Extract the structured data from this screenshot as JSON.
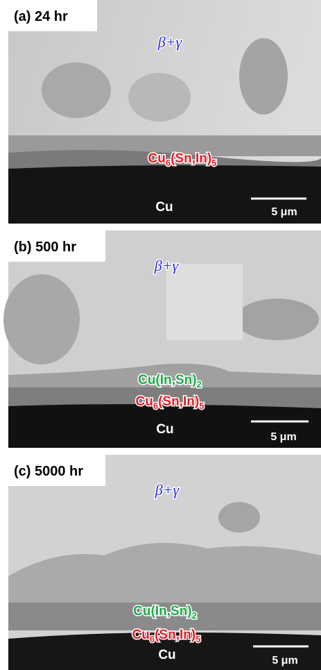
{
  "panels": [
    {
      "label": "(a) 24 hr",
      "phases": [
        {
          "parts": [
            "β+γ"
          ]
        },
        {
          "parts": [
            "Cu",
            "6",
            "(Sn,In)",
            "5"
          ]
        }
      ],
      "substrate": "Cu",
      "scale_bar": "5 μm"
    },
    {
      "label": "(b) 500 hr",
      "phases": [
        {
          "parts": [
            "β+γ"
          ]
        },
        {
          "parts": [
            "Cu(In,Sn)",
            "2"
          ]
        },
        {
          "parts": [
            "Cu",
            "6",
            "(Sn,In)",
            "5"
          ]
        }
      ],
      "substrate": "Cu",
      "scale_bar": "5 μm"
    },
    {
      "label": "(c) 5000 hr",
      "phases": [
        {
          "parts": [
            "β+γ"
          ]
        },
        {
          "parts": [
            "Cu(In,Sn)",
            "2"
          ]
        },
        {
          "parts": [
            "Cu",
            "6",
            "(Sn,In)",
            "5"
          ]
        }
      ],
      "substrate": "Cu",
      "scale_bar": "5 μm"
    }
  ]
}
